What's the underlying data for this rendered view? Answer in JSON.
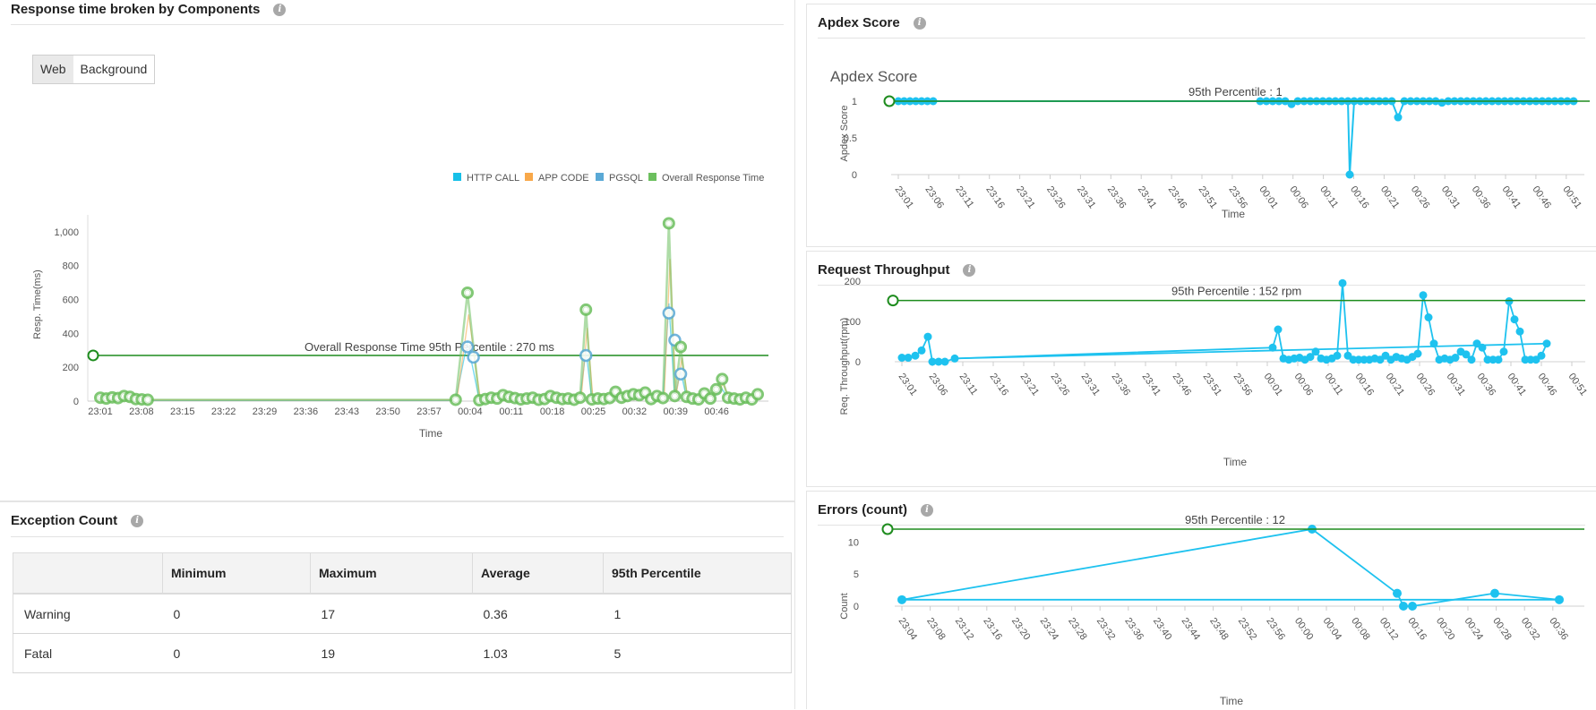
{
  "panels": {
    "response": {
      "title": "Response time broken by Components",
      "tabs": [
        "Web",
        "Background"
      ],
      "legend": [
        "HTTP CALL",
        "APP CODE",
        "PGSQL",
        "Overall Response Time"
      ],
      "percentile_label": "Overall Response Time 95th Percentile : 270 ms"
    },
    "apdex": {
      "title": "Apdex Score",
      "chart_title": "Apdex Score",
      "percentile_label": "95th Percentile : 1"
    },
    "throughput": {
      "title": "Request Throughput",
      "percentile_label": "95th Percentile : 152 rpm"
    },
    "errors": {
      "title": "Errors (count)",
      "percentile_label": "95th Percentile : 12"
    },
    "exceptions": {
      "title": "Exception Count",
      "columns": [
        "",
        "Minimum",
        "Maximum",
        "Average",
        "95th Percentile"
      ],
      "rows": [
        [
          "Warning",
          "0",
          "17",
          "0.36",
          "1"
        ],
        [
          "Fatal",
          "0",
          "19",
          "1.03",
          "5"
        ]
      ]
    }
  },
  "colors": {
    "http": "#17c0e8",
    "app": "#f8a84a",
    "pgsql": "#5aa9d6",
    "overall": "#6cbf5e",
    "percentile": "#1e8c1e",
    "series": "#1ec2ef"
  },
  "chart_data": [
    {
      "type": "line",
      "title": "",
      "xlabel": "Time",
      "ylabel": "Resp. Time(ms)",
      "ylim": [
        0,
        1100
      ],
      "yticks": [
        "0",
        "200",
        "400",
        "600",
        "800",
        "1,000"
      ],
      "xticks": [
        "23:01",
        "23:08",
        "23:15",
        "23:22",
        "23:29",
        "23:36",
        "23:43",
        "23:50",
        "23:57",
        "00:04",
        "00:11",
        "00:18",
        "00:25",
        "00:32",
        "00:39",
        "00:46"
      ],
      "series": [
        {
          "name": "Overall Response Time",
          "points": [
            [
              0,
              20
            ],
            [
              1,
              15
            ],
            [
              2,
              22
            ],
            [
              3,
              18
            ],
            [
              4,
              30
            ],
            [
              5,
              25
            ],
            [
              6,
              12
            ],
            [
              7,
              10
            ],
            [
              8,
              8
            ],
            [
              60,
              8
            ],
            [
              62,
              640
            ],
            [
              64,
              5
            ],
            [
              65,
              12
            ],
            [
              66,
              20
            ],
            [
              67,
              15
            ],
            [
              68,
              35
            ],
            [
              69,
              25
            ],
            [
              70,
              18
            ],
            [
              71,
              10
            ],
            [
              72,
              15
            ],
            [
              73,
              20
            ],
            [
              74,
              8
            ],
            [
              75,
              12
            ],
            [
              76,
              30
            ],
            [
              77,
              20
            ],
            [
              78,
              12
            ],
            [
              79,
              15
            ],
            [
              80,
              8
            ],
            [
              81,
              20
            ],
            [
              82,
              540
            ],
            [
              83,
              10
            ],
            [
              84,
              15
            ],
            [
              85,
              12
            ],
            [
              86,
              18
            ],
            [
              87,
              55
            ],
            [
              88,
              20
            ],
            [
              89,
              30
            ],
            [
              90,
              40
            ],
            [
              91,
              35
            ],
            [
              92,
              50
            ],
            [
              93,
              12
            ],
            [
              94,
              30
            ],
            [
              95,
              18
            ],
            [
              96,
              1050
            ],
            [
              97,
              30
            ],
            [
              98,
              320
            ],
            [
              99,
              25
            ],
            [
              100,
              15
            ],
            [
              101,
              10
            ],
            [
              102,
              45
            ],
            [
              103,
              15
            ],
            [
              104,
              70
            ],
            [
              105,
              130
            ],
            [
              106,
              20
            ],
            [
              107,
              15
            ],
            [
              108,
              10
            ],
            [
              109,
              20
            ],
            [
              110,
              10
            ],
            [
              111,
              40
            ]
          ]
        },
        {
          "name": "PGSQL",
          "points": [
            [
              62,
              320
            ],
            [
              63,
              260
            ],
            [
              82,
              270
            ],
            [
              96,
              520
            ],
            [
              97,
              360
            ],
            [
              98,
              160
            ]
          ]
        }
      ],
      "percentile": 270
    },
    {
      "type": "line",
      "title": "Apdex Score",
      "xlabel": "Time",
      "ylabel": "Apdex Score",
      "ylim": [
        0,
        1
      ],
      "yticks": [
        "0",
        "0.5",
        "1"
      ],
      "xticks": [
        "23:01",
        "23:06",
        "23:11",
        "23:16",
        "23:21",
        "23:26",
        "23:31",
        "23:36",
        "23:41",
        "23:46",
        "23:51",
        "23:56",
        "00:01",
        "00:06",
        "00:11",
        "00:16",
        "00:21",
        "00:26",
        "00:31",
        "00:36",
        "00:41",
        "00:46",
        "00:51"
      ],
      "percentile": 1
    },
    {
      "type": "line",
      "title": "",
      "xlabel": "Time",
      "ylabel": "Req. Throughput(rpm)",
      "ylim": [
        0,
        200
      ],
      "yticks": [
        "0",
        "100",
        "200"
      ],
      "xticks": [
        "23:01",
        "23:06",
        "23:11",
        "23:16",
        "23:21",
        "23:26",
        "23:31",
        "23:36",
        "23:41",
        "23:46",
        "23:51",
        "23:56",
        "00:01",
        "00:06",
        "00:11",
        "00:16",
        "00:21",
        "00:26",
        "00:31",
        "00:36",
        "00:41",
        "00:46",
        "00:51"
      ],
      "percentile": 152
    },
    {
      "type": "line",
      "title": "",
      "xlabel": "Time",
      "ylabel": "Count",
      "ylim": [
        0,
        12
      ],
      "yticks": [
        "0",
        "5",
        "10"
      ],
      "xticks": [
        "23:04",
        "23:08",
        "23:12",
        "23:16",
        "23:20",
        "23:24",
        "23:28",
        "23:32",
        "23:36",
        "23:40",
        "23:44",
        "23:48",
        "23:52",
        "23:56",
        "00:00",
        "00:04",
        "00:08",
        "00:12",
        "00:16",
        "00:20",
        "00:24",
        "00:28",
        "00:32",
        "00:36"
      ],
      "points": [
        [
          "23:04",
          1
        ],
        [
          "00:00",
          12
        ],
        [
          "00:12",
          2
        ],
        [
          "00:13",
          0
        ],
        [
          "00:15",
          0
        ],
        [
          "00:26",
          2
        ],
        [
          "00:36",
          1
        ]
      ],
      "percentile": 12
    }
  ]
}
